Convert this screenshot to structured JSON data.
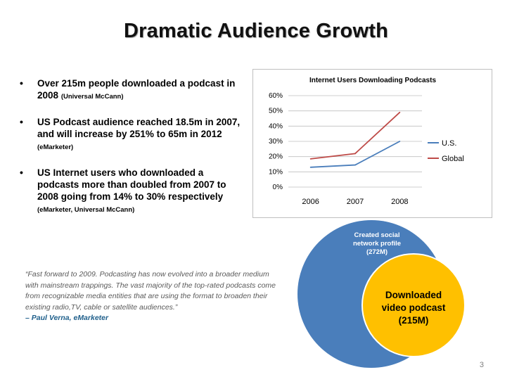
{
  "slide": {
    "title": "Dramatic Audience Growth",
    "page_number": "3"
  },
  "bullets": [
    {
      "text": "Over 215m people downloaded a podcast in 2008",
      "source": "(Universal McCann)"
    },
    {
      "text": "US Podcast audience reached 18.5m in 2007, and will increase by 251% to 65m in 2012",
      "source": "(eMarketer)"
    },
    {
      "text": "US Internet users who downloaded a podcasts more than doubled from 2007 to 2008 going from 14% to 30% respectively",
      "source": "(eMarketer, Universal McCann)"
    }
  ],
  "quote": {
    "text": "“Fast forward to 2009. Podcasting has now evolved into a broader medium with mainstream trappings. The vast majority of the top-rated podcasts come from recognizable media entities that are using the format to broaden their existing radio,TV, cable or satellite audiences.”",
    "author": "– Paul Verna, eMarketer"
  },
  "venn": {
    "outer_label": "Created social network profile (272M)",
    "inner_label": "Downloaded video podcast (215M)",
    "colors": {
      "outer": "#4a7ebb",
      "inner": "#ffc000",
      "outer_text": "#ffffff",
      "inner_text": "#000000"
    }
  },
  "chart_data": {
    "type": "line",
    "title": "Internet Users Downloading  Podcasts",
    "categories": [
      "2006",
      "2007",
      "2008"
    ],
    "series": [
      {
        "name": "U.S.",
        "values": [
          13,
          14.5,
          30
        ],
        "color": "#4a7ebb"
      },
      {
        "name": "Global",
        "values": [
          18.5,
          22,
          49
        ],
        "color": "#be4b48"
      }
    ],
    "yticks": [
      "0%",
      "10%",
      "20%",
      "30%",
      "40%",
      "50%",
      "60%"
    ],
    "ylim": [
      0,
      60
    ],
    "grid": true,
    "legend": "right"
  }
}
